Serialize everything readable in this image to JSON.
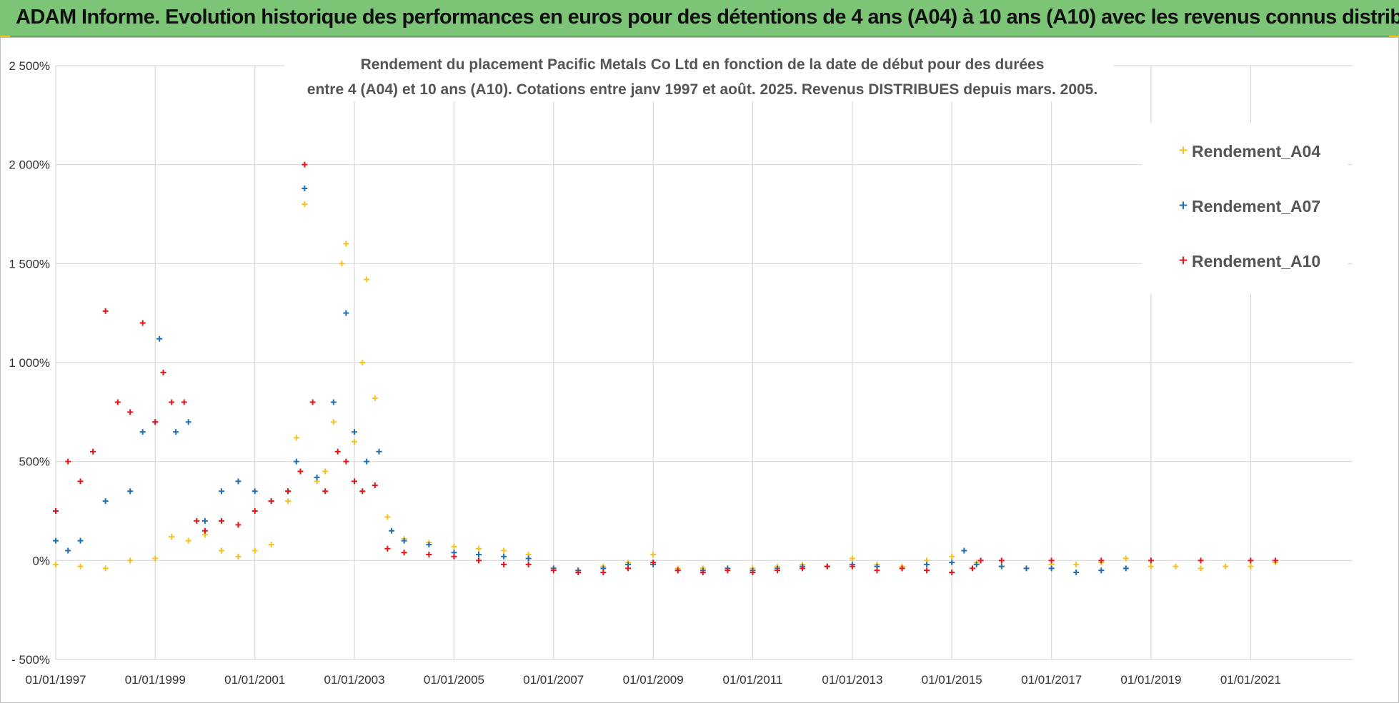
{
  "banner": {
    "title": "ADAM Informe. Evolution historique des performances en euros pour des détentions de 4 ans (A04) à 10 ans (A10) avec les revenus connus distribués"
  },
  "colors": {
    "banner_bg": "#7cc576",
    "A04": "#f6c21c",
    "A07": "#1f6fb4",
    "A10": "#e8141a",
    "grid": "#d9d9d9"
  },
  "chart_data": {
    "type": "scatter",
    "title_line1": "Rendement du placement Pacific Metals Co Ltd en fonction de la date de début pour des durées",
    "title_line2": "entre 4 (A04) et 10 ans (A10). Cotations entre janv 1997 et août. 2025. Revenus DISTRIBUES depuis mars. 2005.",
    "xlabel": "",
    "ylabel": "",
    "x_range": [
      "1997-01-01",
      "2022-01-01"
    ],
    "ylim": [
      -500,
      2500
    ],
    "y_ticks": [
      {
        "value": 2500,
        "label": "2 500%"
      },
      {
        "value": 2000,
        "label": "2 000%"
      },
      {
        "value": 1500,
        "label": "1 500%"
      },
      {
        "value": 1000,
        "label": "1 000%"
      },
      {
        "value": 500,
        "label": "500%"
      },
      {
        "value": 0,
        "label": "0%"
      },
      {
        "value": -500,
        "label": "- 500%"
      }
    ],
    "x_ticks": [
      {
        "date": "1997-01-01",
        "label": "01/01/1997"
      },
      {
        "date": "1999-01-01",
        "label": "01/01/1999"
      },
      {
        "date": "2001-01-01",
        "label": "01/01/2001"
      },
      {
        "date": "2003-01-01",
        "label": "01/01/2003"
      },
      {
        "date": "2005-01-01",
        "label": "01/01/2005"
      },
      {
        "date": "2007-01-01",
        "label": "01/01/2007"
      },
      {
        "date": "2009-01-01",
        "label": "01/01/2009"
      },
      {
        "date": "2011-01-01",
        "label": "01/01/2011"
      },
      {
        "date": "2013-01-01",
        "label": "01/01/2013"
      },
      {
        "date": "2015-01-01",
        "label": "01/01/2015"
      },
      {
        "date": "2017-01-01",
        "label": "01/01/2017"
      },
      {
        "date": "2019-01-01",
        "label": "01/01/2019"
      },
      {
        "date": "2021-01-01",
        "label": "01/01/2021"
      }
    ],
    "grid": true,
    "legend_position": "right",
    "series": [
      {
        "name": "Rendement_A04",
        "marker": "+",
        "x": [
          "1997-01-01",
          "1997-07-01",
          "1998-01-01",
          "1998-07-01",
          "1999-01-01",
          "1999-05-01",
          "1999-09-01",
          "2000-01-01",
          "2000-05-01",
          "2000-09-01",
          "2001-01-01",
          "2001-05-01",
          "2001-09-01",
          "2001-11-01",
          "2002-01-01",
          "2002-04-01",
          "2002-06-01",
          "2002-08-01",
          "2002-10-01",
          "2002-11-01",
          "2003-01-01",
          "2003-03-01",
          "2003-04-01",
          "2003-06-01",
          "2003-09-01",
          "2004-01-01",
          "2004-07-01",
          "2005-01-01",
          "2005-07-01",
          "2006-01-01",
          "2006-07-01",
          "2007-01-01",
          "2007-07-01",
          "2008-01-01",
          "2008-07-01",
          "2009-01-01",
          "2009-07-01",
          "2010-01-01",
          "2010-07-01",
          "2011-01-01",
          "2011-07-01",
          "2012-01-01",
          "2012-07-01",
          "2013-01-01",
          "2013-07-01",
          "2014-01-01",
          "2014-07-01",
          "2015-01-01",
          "2015-07-01",
          "2016-01-01",
          "2016-07-01",
          "2017-01-01",
          "2017-07-01",
          "2018-01-01",
          "2018-07-01",
          "2019-01-01",
          "2019-07-01",
          "2020-01-01",
          "2020-07-01",
          "2021-01-01",
          "2021-07-01"
        ],
        "y": [
          -20,
          -30,
          -40,
          0,
          10,
          120,
          100,
          130,
          50,
          20,
          50,
          80,
          300,
          620,
          1800,
          400,
          450,
          700,
          1500,
          1600,
          600,
          1000,
          1420,
          820,
          220,
          110,
          90,
          70,
          60,
          50,
          30,
          -40,
          -50,
          -30,
          -10,
          30,
          -40,
          -40,
          -50,
          -40,
          -30,
          -20,
          -30,
          10,
          -20,
          -30,
          0,
          20,
          -10,
          -30,
          -40,
          -20,
          -20,
          -10,
          10,
          -30,
          -30,
          -40,
          -30,
          -30,
          -10
        ]
      },
      {
        "name": "Rendement_A07",
        "marker": "+",
        "x": [
          "1997-01-01",
          "1997-04-01",
          "1997-07-01",
          "1998-01-01",
          "1998-07-01",
          "1998-10-01",
          "1999-01-01",
          "1999-02-01",
          "1999-06-01",
          "1999-09-01",
          "2000-01-01",
          "2000-05-01",
          "2000-09-01",
          "2001-01-01",
          "2001-05-01",
          "2001-09-01",
          "2001-11-01",
          "2002-01-01",
          "2002-04-01",
          "2002-08-01",
          "2002-11-01",
          "2003-01-01",
          "2003-04-01",
          "2003-07-01",
          "2003-10-01",
          "2004-01-01",
          "2004-07-01",
          "2005-01-01",
          "2005-07-01",
          "2006-01-01",
          "2006-07-01",
          "2007-01-01",
          "2007-07-01",
          "2008-01-01",
          "2008-07-01",
          "2009-01-01",
          "2009-07-01",
          "2010-01-01",
          "2010-07-01",
          "2011-01-01",
          "2011-07-01",
          "2012-01-01",
          "2012-07-01",
          "2013-01-01",
          "2013-07-01",
          "2014-01-01",
          "2014-07-01",
          "2015-01-01",
          "2015-04-01",
          "2015-07-01",
          "2016-01-01",
          "2016-07-01",
          "2017-01-01",
          "2017-07-01",
          "2018-01-01",
          "2018-07-01"
        ],
        "y": [
          100,
          50,
          100,
          300,
          350,
          650,
          700,
          1120,
          650,
          700,
          200,
          350,
          400,
          350,
          300,
          350,
          500,
          1880,
          420,
          800,
          1250,
          650,
          500,
          550,
          150,
          100,
          80,
          40,
          30,
          20,
          10,
          -40,
          -50,
          -40,
          -20,
          -20,
          -50,
          -50,
          -40,
          -50,
          -40,
          -30,
          -30,
          -20,
          -30,
          -40,
          -20,
          -10,
          50,
          -20,
          -30,
          -40,
          -40,
          -60,
          -50,
          -40
        ]
      },
      {
        "name": "Rendement_A10",
        "marker": "+",
        "x": [
          "1997-01-01",
          "1997-04-01",
          "1997-07-01",
          "1997-10-01",
          "1998-01-01",
          "1998-04-01",
          "1998-07-01",
          "1998-10-01",
          "1999-01-01",
          "1999-03-01",
          "1999-05-01",
          "1999-08-01",
          "1999-11-01",
          "2000-01-01",
          "2000-05-01",
          "2000-09-01",
          "2001-01-01",
          "2001-05-01",
          "2001-09-01",
          "2001-12-01",
          "2002-01-01",
          "2002-03-01",
          "2002-06-01",
          "2002-09-01",
          "2002-11-01",
          "2003-01-01",
          "2003-03-01",
          "2003-06-01",
          "2003-09-01",
          "2004-01-01",
          "2004-07-01",
          "2005-01-01",
          "2005-07-01",
          "2006-01-01",
          "2006-07-01",
          "2007-01-01",
          "2007-07-01",
          "2008-01-01",
          "2008-07-01",
          "2009-01-01",
          "2009-07-01",
          "2010-01-01",
          "2010-07-01",
          "2011-01-01",
          "2011-07-01",
          "2012-01-01",
          "2012-07-01",
          "2013-01-01",
          "2013-07-01",
          "2014-01-01",
          "2014-07-01",
          "2015-01-01",
          "2015-06-01",
          "2015-08-01",
          "2016-01-01",
          "2017-01-01",
          "2018-01-01",
          "2019-01-01",
          "2020-01-01",
          "2021-01-01",
          "2021-07-01"
        ],
        "y": [
          250,
          500,
          400,
          550,
          1260,
          800,
          750,
          1200,
          700,
          950,
          800,
          800,
          200,
          150,
          200,
          180,
          250,
          300,
          350,
          450,
          2000,
          800,
          350,
          550,
          500,
          400,
          350,
          380,
          60,
          40,
          30,
          20,
          0,
          -20,
          -20,
          -50,
          -60,
          -60,
          -40,
          -10,
          -50,
          -60,
          -50,
          -60,
          -50,
          -40,
          -30,
          -30,
          -50,
          -40,
          -50,
          -60,
          -40,
          0,
          0,
          0,
          0,
          0,
          0,
          0,
          0
        ]
      }
    ]
  }
}
